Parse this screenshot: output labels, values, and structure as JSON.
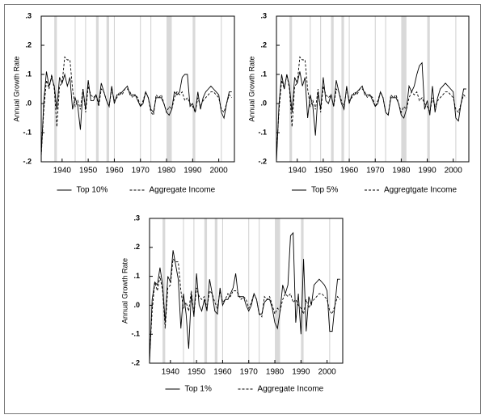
{
  "chart_data": [
    {
      "type": "line",
      "y_label": "Annual Growth Rate",
      "x": [
        1932,
        1933,
        1934,
        1935,
        1936,
        1937,
        1938,
        1939,
        1940,
        1941,
        1942,
        1943,
        1944,
        1945,
        1946,
        1947,
        1948,
        1949,
        1950,
        1951,
        1952,
        1953,
        1954,
        1955,
        1956,
        1957,
        1958,
        1959,
        1960,
        1961,
        1962,
        1963,
        1964,
        1965,
        1966,
        1967,
        1968,
        1969,
        1970,
        1971,
        1972,
        1973,
        1974,
        1975,
        1976,
        1977,
        1978,
        1979,
        1980,
        1981,
        1982,
        1983,
        1984,
        1985,
        1986,
        1987,
        1988,
        1989,
        1990,
        1991,
        1992,
        1993,
        1994,
        1995,
        1996,
        1997,
        1998,
        1999,
        2000,
        2001,
        2002,
        2003,
        2004,
        2005
      ],
      "series": [
        {
          "name": "Top 10%",
          "color": "#000000",
          "style": "solid",
          "values": [
            -0.18,
            0.01,
            0.11,
            0.06,
            0.09,
            0.06,
            -0.02,
            0.09,
            0.07,
            0.1,
            0.06,
            0.09,
            -0.02,
            0.02,
            -0.01,
            -0.09,
            0.05,
            -0.02,
            0.08,
            0.01,
            0.01,
            0.03,
            0.0,
            0.07,
            0.04,
            0.01,
            -0.01,
            0.06,
            0.0,
            0.03,
            0.03,
            0.04,
            0.05,
            0.06,
            0.03,
            0.03,
            0.03,
            0.01,
            -0.01,
            0.0,
            0.04,
            0.02,
            -0.02,
            -0.03,
            0.02,
            0.02,
            0.02,
            0.0,
            -0.03,
            -0.04,
            -0.02,
            0.04,
            0.03,
            0.04,
            0.09,
            0.1,
            0.1,
            -0.01,
            0.0,
            -0.03,
            0.04,
            -0.02,
            0.02,
            0.04,
            0.05,
            0.06,
            0.05,
            0.04,
            0.03,
            -0.03,
            -0.05,
            0.0,
            0.04,
            0.04
          ]
        },
        {
          "name": "Aggregate Income",
          "color": "#000000",
          "style": "dashed",
          "values": [
            -0.18,
            -0.02,
            0.08,
            0.05,
            0.1,
            0.05,
            -0.08,
            0.06,
            0.07,
            0.16,
            0.15,
            0.15,
            0.05,
            -0.01,
            0.01,
            -0.02,
            0.05,
            -0.03,
            0.06,
            0.03,
            0.02,
            0.03,
            -0.01,
            0.05,
            0.04,
            0.01,
            -0.01,
            0.05,
            0.01,
            0.02,
            0.04,
            0.03,
            0.05,
            0.05,
            0.04,
            0.02,
            0.03,
            0.02,
            -0.01,
            0.01,
            0.04,
            0.02,
            -0.03,
            -0.04,
            0.03,
            0.02,
            0.03,
            0.0,
            -0.03,
            -0.01,
            -0.02,
            0.02,
            0.04,
            0.03,
            0.04,
            0.01,
            0.02,
            0.0,
            -0.01,
            -0.03,
            0.02,
            -0.01,
            0.01,
            0.02,
            0.03,
            0.04,
            0.04,
            0.03,
            0.02,
            -0.02,
            -0.03,
            0.0,
            0.03,
            0.02
          ]
        }
      ],
      "xlim": [
        1932,
        2006
      ],
      "ylim": [
        -0.2,
        0.3
      ],
      "xticks": [
        1940,
        1950,
        1960,
        1970,
        1980,
        1990,
        2000
      ],
      "yticks": [
        {
          "value": -0.2,
          "label": "-.2"
        },
        {
          "value": -0.1,
          "label": "-.1"
        },
        {
          "value": 0,
          "label": ".0"
        },
        {
          "value": 0.1,
          "label": ".1"
        },
        {
          "value": 0.2,
          "label": ".2"
        },
        {
          "value": 0.3,
          "label": ".3"
        }
      ],
      "shaded_periods": [
        [
          1937,
          1938
        ],
        [
          1953,
          1954
        ],
        [
          1957,
          1958
        ],
        [
          1980,
          1982
        ],
        [
          1990,
          1991
        ]
      ],
      "recession_lines": [
        1945,
        1949,
        1960,
        1970,
        1974,
        2001
      ]
    },
    {
      "type": "line",
      "y_label": "Annual Growth Rate",
      "x": [
        1932,
        1933,
        1934,
        1935,
        1936,
        1937,
        1938,
        1939,
        1940,
        1941,
        1942,
        1943,
        1944,
        1945,
        1946,
        1947,
        1948,
        1949,
        1950,
        1951,
        1952,
        1953,
        1954,
        1955,
        1956,
        1957,
        1958,
        1959,
        1960,
        1961,
        1962,
        1963,
        1964,
        1965,
        1966,
        1967,
        1968,
        1969,
        1970,
        1971,
        1972,
        1973,
        1974,
        1975,
        1976,
        1977,
        1978,
        1979,
        1980,
        1981,
        1982,
        1983,
        1984,
        1985,
        1986,
        1987,
        1988,
        1989,
        1990,
        1991,
        1992,
        1993,
        1994,
        1995,
        1996,
        1997,
        1998,
        1999,
        2000,
        2001,
        2002,
        2003,
        2004,
        2005
      ],
      "series": [
        {
          "name": "Top 5%",
          "color": "#000000",
          "style": "solid",
          "values": [
            -0.2,
            0.0,
            0.1,
            0.05,
            0.1,
            0.06,
            -0.03,
            0.09,
            0.07,
            0.11,
            0.06,
            0.09,
            -0.05,
            0.03,
            -0.01,
            -0.11,
            0.04,
            -0.02,
            0.09,
            0.01,
            0.0,
            0.03,
            -0.01,
            0.08,
            0.04,
            0.0,
            -0.02,
            0.06,
            0.0,
            0.03,
            0.03,
            0.04,
            0.05,
            0.06,
            0.03,
            0.03,
            0.03,
            0.01,
            -0.01,
            0.0,
            0.04,
            0.02,
            -0.03,
            -0.04,
            0.02,
            0.02,
            0.02,
            0.0,
            -0.04,
            -0.05,
            -0.02,
            0.06,
            0.04,
            0.06,
            0.1,
            0.13,
            0.14,
            -0.02,
            0.01,
            -0.04,
            0.06,
            -0.03,
            0.02,
            0.05,
            0.06,
            0.07,
            0.06,
            0.05,
            0.04,
            -0.05,
            -0.06,
            0.0,
            0.05,
            0.05
          ]
        },
        {
          "name": "Aggregtgate Income",
          "color": "#000000",
          "style": "dashed",
          "values": [
            -0.18,
            -0.02,
            0.08,
            0.05,
            0.1,
            0.05,
            -0.08,
            0.06,
            0.07,
            0.16,
            0.15,
            0.15,
            0.05,
            -0.01,
            0.01,
            -0.02,
            0.05,
            -0.03,
            0.06,
            0.03,
            0.02,
            0.03,
            -0.01,
            0.05,
            0.04,
            0.01,
            -0.01,
            0.05,
            0.01,
            0.02,
            0.04,
            0.03,
            0.05,
            0.05,
            0.04,
            0.02,
            0.03,
            0.02,
            -0.01,
            0.01,
            0.04,
            0.02,
            -0.03,
            -0.04,
            0.03,
            0.02,
            0.03,
            0.0,
            -0.03,
            -0.01,
            -0.02,
            0.02,
            0.04,
            0.03,
            0.04,
            0.01,
            0.02,
            0.0,
            -0.01,
            -0.03,
            0.02,
            -0.01,
            0.01,
            0.02,
            0.03,
            0.04,
            0.04,
            0.03,
            0.02,
            -0.02,
            -0.03,
            0.0,
            0.03,
            0.02
          ]
        }
      ],
      "xlim": [
        1932,
        2006
      ],
      "ylim": [
        -0.2,
        0.3
      ],
      "xticks": [
        1940,
        1950,
        1960,
        1970,
        1980,
        1990,
        2000
      ],
      "yticks": [
        {
          "value": -0.2,
          "label": "-.2"
        },
        {
          "value": -0.1,
          "label": "-.1"
        },
        {
          "value": 0,
          "label": ".0"
        },
        {
          "value": 0.1,
          "label": ".1"
        },
        {
          "value": 0.2,
          "label": ".2"
        },
        {
          "value": 0.3,
          "label": ".3"
        }
      ],
      "shaded_periods": [
        [
          1937,
          1938
        ],
        [
          1953,
          1954
        ],
        [
          1957,
          1958
        ],
        [
          1980,
          1982
        ],
        [
          1990,
          1991
        ]
      ],
      "recession_lines": [
        1945,
        1949,
        1960,
        1970,
        1974,
        2001
      ]
    },
    {
      "type": "line",
      "y_label": "Annual Growth Rate",
      "x": [
        1932,
        1933,
        1934,
        1935,
        1936,
        1937,
        1938,
        1939,
        1940,
        1941,
        1942,
        1943,
        1944,
        1945,
        1946,
        1947,
        1948,
        1949,
        1950,
        1951,
        1952,
        1953,
        1954,
        1955,
        1956,
        1957,
        1958,
        1959,
        1960,
        1961,
        1962,
        1963,
        1964,
        1965,
        1966,
        1967,
        1968,
        1969,
        1970,
        1971,
        1972,
        1973,
        1974,
        1975,
        1976,
        1977,
        1978,
        1979,
        1980,
        1981,
        1982,
        1983,
        1984,
        1985,
        1986,
        1987,
        1988,
        1989,
        1990,
        1991,
        1992,
        1993,
        1994,
        1995,
        1996,
        1997,
        1998,
        1999,
        2000,
        2001,
        2002,
        2003,
        2004,
        2005
      ],
      "series": [
        {
          "name": "Top 1%",
          "color": "#000000",
          "style": "solid",
          "values": [
            -0.2,
            0.02,
            0.08,
            0.07,
            0.13,
            0.07,
            -0.06,
            0.1,
            0.08,
            0.19,
            0.14,
            0.09,
            -0.08,
            0.04,
            -0.03,
            -0.15,
            0.04,
            -0.04,
            0.11,
            0.0,
            -0.02,
            0.02,
            -0.02,
            0.09,
            0.04,
            -0.02,
            -0.03,
            0.06,
            0.0,
            0.02,
            0.02,
            0.04,
            0.06,
            0.11,
            0.03,
            0.03,
            0.03,
            0.0,
            -0.02,
            0.0,
            0.04,
            0.02,
            -0.03,
            -0.03,
            0.01,
            0.02,
            0.02,
            -0.01,
            -0.06,
            -0.08,
            -0.02,
            0.07,
            0.04,
            0.07,
            0.24,
            0.25,
            -0.06,
            0.04,
            -0.1,
            0.16,
            -0.09,
            0.03,
            0.0,
            0.07,
            0.08,
            0.09,
            0.08,
            0.07,
            0.05,
            -0.09,
            -0.09,
            0.0,
            0.09,
            0.09
          ]
        },
        {
          "name": "Aggregate Income",
          "color": "#000000",
          "style": "dashed",
          "values": [
            -0.18,
            -0.02,
            0.08,
            0.05,
            0.1,
            0.05,
            -0.08,
            0.06,
            0.07,
            0.16,
            0.15,
            0.15,
            0.05,
            -0.01,
            0.01,
            -0.02,
            0.05,
            -0.03,
            0.06,
            0.03,
            0.02,
            0.03,
            -0.01,
            0.05,
            0.04,
            0.01,
            -0.01,
            0.05,
            0.01,
            0.02,
            0.04,
            0.03,
            0.05,
            0.05,
            0.04,
            0.02,
            0.03,
            0.02,
            -0.01,
            0.01,
            0.04,
            0.02,
            -0.03,
            -0.04,
            0.03,
            0.02,
            0.03,
            0.0,
            -0.03,
            -0.01,
            -0.02,
            0.02,
            0.04,
            0.03,
            0.04,
            0.01,
            0.02,
            0.0,
            -0.01,
            -0.03,
            0.02,
            -0.01,
            0.01,
            0.02,
            0.03,
            0.04,
            0.04,
            0.03,
            0.02,
            -0.02,
            -0.03,
            0.0,
            0.03,
            0.02
          ]
        }
      ],
      "xlim": [
        1932,
        2006
      ],
      "ylim": [
        -0.2,
        0.3
      ],
      "xticks": [
        1940,
        1950,
        1960,
        1970,
        1980,
        1990,
        2000
      ],
      "yticks": [
        {
          "value": -0.2,
          "label": "-.2"
        },
        {
          "value": -0.1,
          "label": "-.1"
        },
        {
          "value": 0,
          "label": ".0"
        },
        {
          "value": 0.1,
          "label": ".1"
        },
        {
          "value": 0.2,
          "label": ".2"
        },
        {
          "value": 0.3,
          "label": ".3"
        }
      ],
      "shaded_periods": [
        [
          1937,
          1938
        ],
        [
          1953,
          1954
        ],
        [
          1957,
          1958
        ],
        [
          1980,
          1982
        ],
        [
          1990,
          1991
        ]
      ],
      "recession_lines": [
        1945,
        1949,
        1960,
        1970,
        1974,
        2001
      ]
    }
  ]
}
